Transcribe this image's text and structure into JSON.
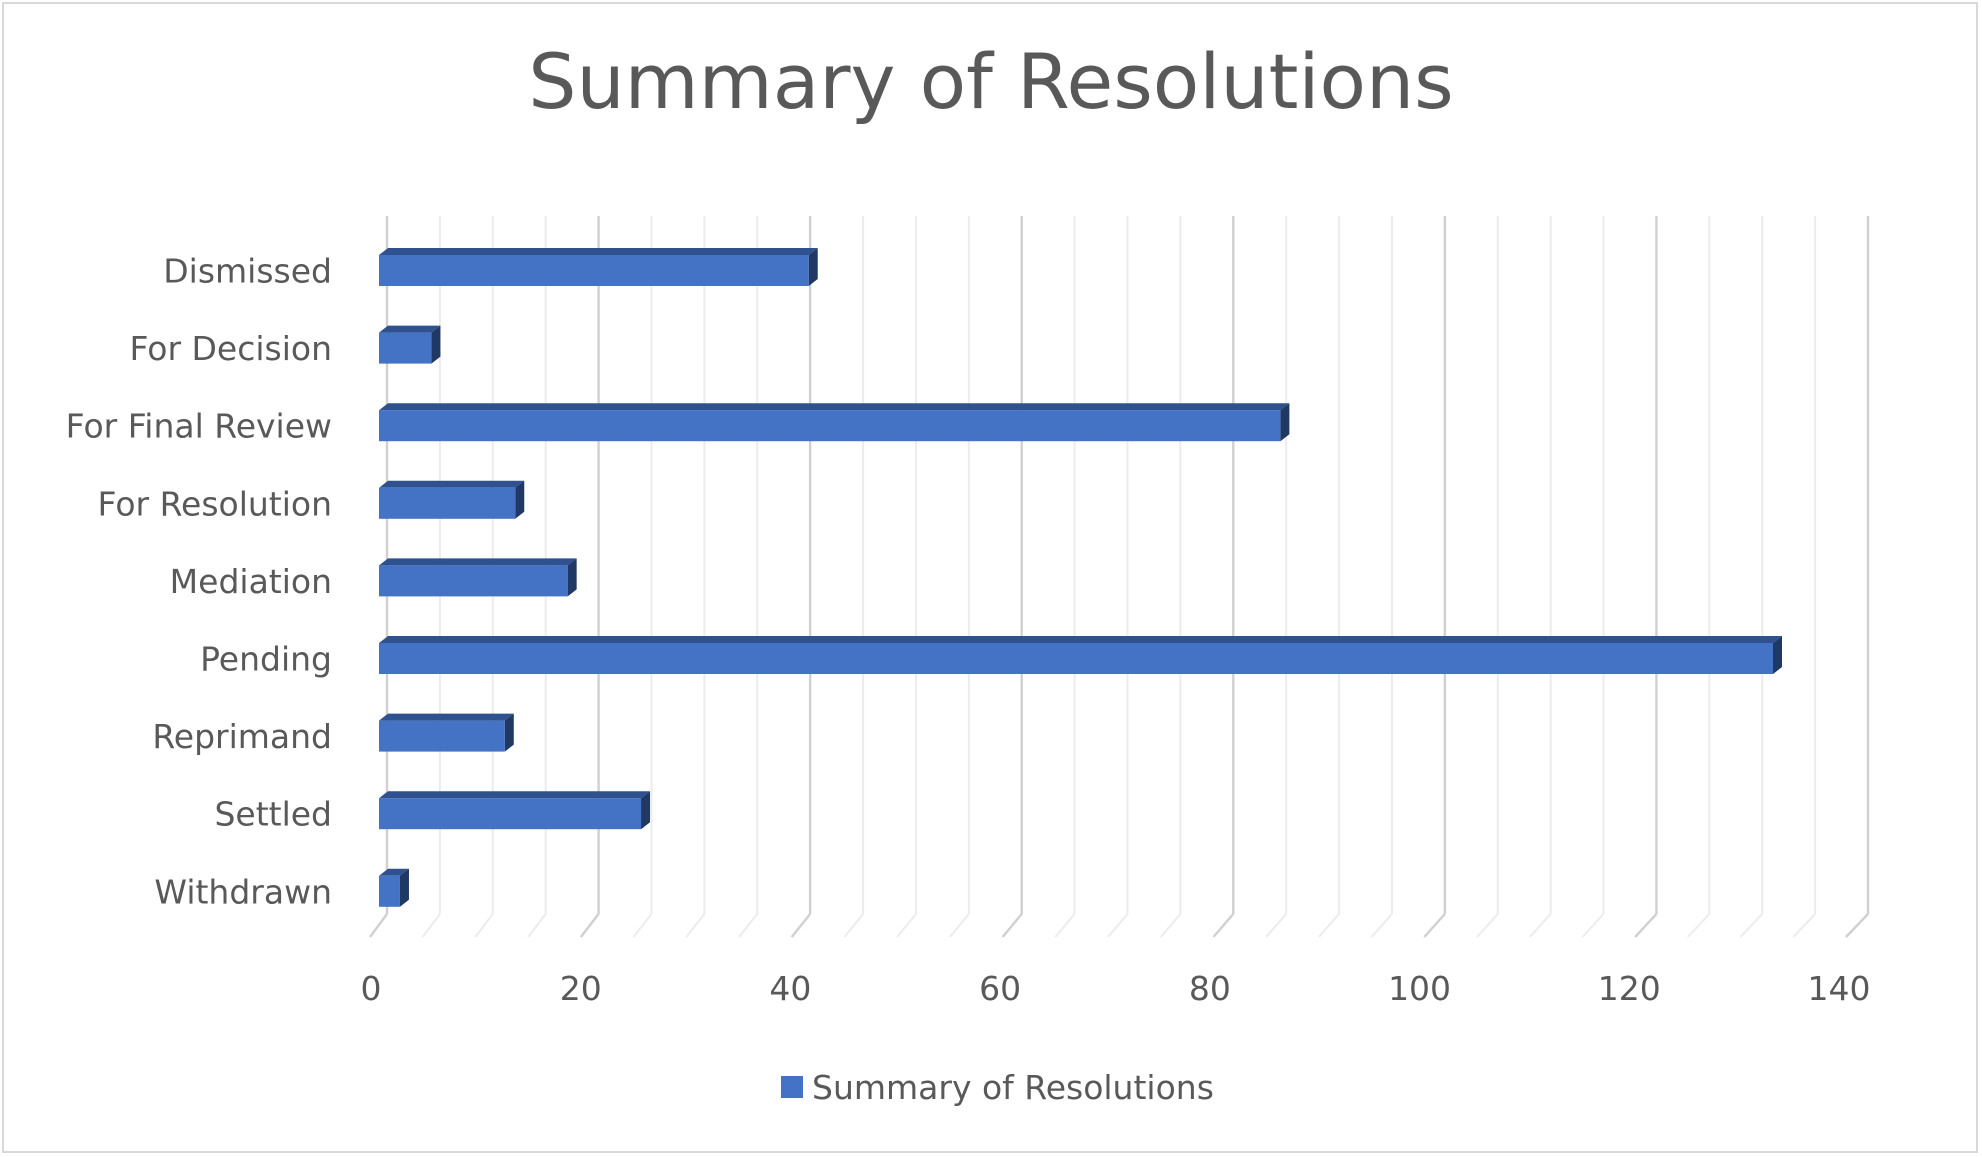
{
  "chart_data": {
    "type": "bar",
    "orientation": "horizontal",
    "title": "Summary of Resolutions",
    "categories": [
      "Dismissed",
      "For Decision",
      "For Final Review",
      "For Resolution",
      "Mediation",
      "Pending",
      "Reprimand",
      "Settled",
      "Withdrawn"
    ],
    "series": [
      {
        "name": "Summary of Resolutions",
        "values": [
          41,
          5,
          86,
          13,
          18,
          133,
          12,
          25,
          2
        ],
        "color": "#4472c4",
        "top_color": "#2f528f",
        "side_color": "#203864"
      }
    ],
    "xlim": [
      0,
      140
    ],
    "x_ticks": [
      0,
      20,
      40,
      60,
      80,
      100,
      120,
      140
    ],
    "grid": "vertical, 3d",
    "legend_position": "bottom"
  }
}
